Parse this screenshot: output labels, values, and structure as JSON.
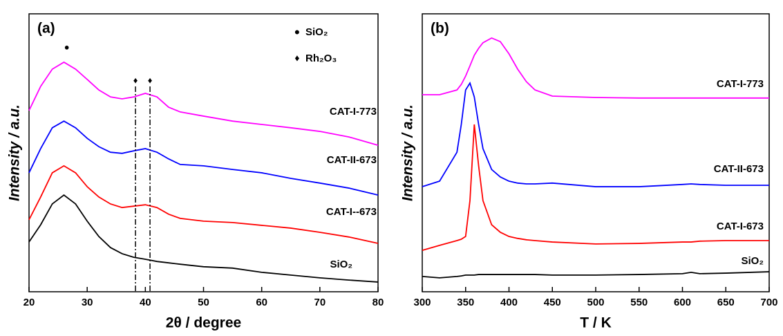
{
  "chart_data": [
    {
      "type": "line",
      "panel": "(a)",
      "xlabel": "2θ / degree",
      "ylabel": "Intensity / a.u.",
      "x": [
        20,
        22,
        24,
        26,
        28,
        30,
        32,
        34,
        36,
        38,
        40,
        42,
        44,
        46,
        50,
        55,
        60,
        65,
        70,
        75,
        80
      ],
      "xlim": [
        20,
        80
      ],
      "xticks": [
        20,
        30,
        40,
        50,
        60,
        70,
        80
      ],
      "ylim": [
        0,
        100
      ],
      "series": [
        {
          "name": "CAT-I-773",
          "color": "#ff00ff",
          "values": [
            65.2,
            73.9,
            80.1,
            82.6,
            80.1,
            76.4,
            72.6,
            70.1,
            69.4,
            70.1,
            71.4,
            70.1,
            66.4,
            64.7,
            63.2,
            61.4,
            60.2,
            59.0,
            57.7,
            55.7,
            52.7
          ]
        },
        {
          "name": "CAT-II-673",
          "color": "#0000ff",
          "values": [
            42.8,
            51.5,
            59.0,
            61.4,
            59.0,
            55.2,
            52.2,
            50.2,
            49.8,
            50.7,
            51.5,
            50.2,
            47.8,
            45.8,
            45.3,
            44.0,
            42.8,
            40.8,
            39.1,
            37.3,
            34.8
          ]
        },
        {
          "name": "CAT-I--673",
          "color": "#ff0000",
          "values": [
            25.9,
            34.1,
            42.8,
            45.3,
            42.8,
            37.8,
            34.1,
            31.6,
            30.3,
            30.8,
            31.3,
            30.3,
            27.9,
            26.4,
            25.4,
            24.9,
            23.9,
            22.9,
            21.4,
            19.7,
            17.4
          ]
        },
        {
          "name": "SiO₂",
          "color": "#000000",
          "values": [
            17.9,
            24.1,
            31.6,
            34.8,
            31.6,
            25.4,
            19.9,
            15.9,
            13.7,
            12.4,
            11.7,
            10.9,
            10.4,
            9.9,
            9.0,
            8.5,
            7.0,
            6.0,
            5.0,
            4.2,
            3.5
          ]
        }
      ],
      "annotations": [
        {
          "symbol": "●",
          "label": "SiO₂",
          "x": [
            26.5
          ]
        },
        {
          "symbol": "♦",
          "label": "Rh₂O₃",
          "x": [
            38.3,
            40.8
          ]
        }
      ]
    },
    {
      "type": "line",
      "panel": "(b)",
      "xlabel": "T / K",
      "ylabel": "Intensity / a.u.",
      "x": [
        300,
        320,
        340,
        345,
        350,
        355,
        360,
        365,
        370,
        380,
        390,
        400,
        410,
        420,
        430,
        450,
        500,
        550,
        600,
        610,
        620,
        650,
        700
      ],
      "xlim": [
        300,
        700
      ],
      "xticks": [
        300,
        350,
        400,
        450,
        500,
        550,
        600,
        650,
        700
      ],
      "ylim": [
        0,
        100
      ],
      "series": [
        {
          "name": "CAT-I-773",
          "color": "#ff00ff",
          "values": [
            70.9,
            70.9,
            72.6,
            74.6,
            77.6,
            81.3,
            85.1,
            87.6,
            89.6,
            91.3,
            90.0,
            85.6,
            80.1,
            75.6,
            72.6,
            70.4,
            69.9,
            69.7,
            69.7,
            69.7,
            69.7,
            69.7,
            69.7
          ]
        },
        {
          "name": "CAT-II-673",
          "color": "#0000ff",
          "values": [
            37.8,
            39.8,
            50.2,
            60.2,
            72.6,
            75.1,
            70.1,
            60.2,
            51.5,
            44.0,
            41.3,
            39.8,
            39.1,
            38.8,
            38.8,
            39.1,
            37.8,
            37.8,
            38.6,
            38.8,
            38.6,
            38.3,
            38.3
          ]
        },
        {
          "name": "CAT-I-673",
          "color": "#ff0000",
          "values": [
            14.9,
            16.7,
            18.4,
            18.9,
            19.9,
            32.8,
            60.2,
            45.3,
            32.8,
            24.1,
            21.4,
            19.9,
            19.2,
            18.7,
            18.4,
            17.9,
            17.2,
            17.4,
            17.9,
            17.9,
            18.2,
            18.4,
            18.4
          ]
        },
        {
          "name": "SiO₂",
          "color": "#000000",
          "values": [
            5.5,
            5.0,
            5.5,
            5.7,
            6.0,
            6.0,
            6.0,
            6.2,
            6.2,
            6.2,
            6.2,
            6.2,
            6.2,
            6.2,
            6.2,
            6.0,
            6.0,
            6.2,
            6.5,
            7.0,
            6.5,
            6.7,
            7.2
          ]
        }
      ]
    }
  ]
}
